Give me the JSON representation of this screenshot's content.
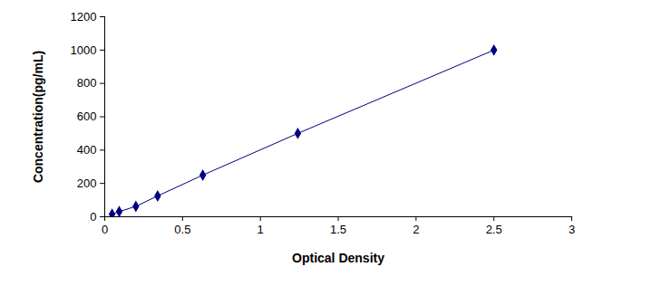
{
  "chart_data": {
    "type": "line",
    "x_label": "Optical Density",
    "y_label": "Concentration(pg/mL)",
    "x": [
      0.047,
      0.093,
      0.2,
      0.34,
      0.63,
      1.24,
      2.5
    ],
    "values": [
      15.6,
      31.2,
      62.5,
      125,
      250,
      500,
      1000
    ],
    "color": "#000080",
    "marker": "diamond",
    "xlim": [
      0,
      3
    ],
    "xticks": [
      0,
      0.5,
      1,
      1.5,
      2,
      2.5,
      3
    ],
    "ylim": [
      0,
      1200
    ],
    "yticks": [
      0,
      200,
      400,
      600,
      800,
      1000,
      1200
    ],
    "grid": false
  }
}
